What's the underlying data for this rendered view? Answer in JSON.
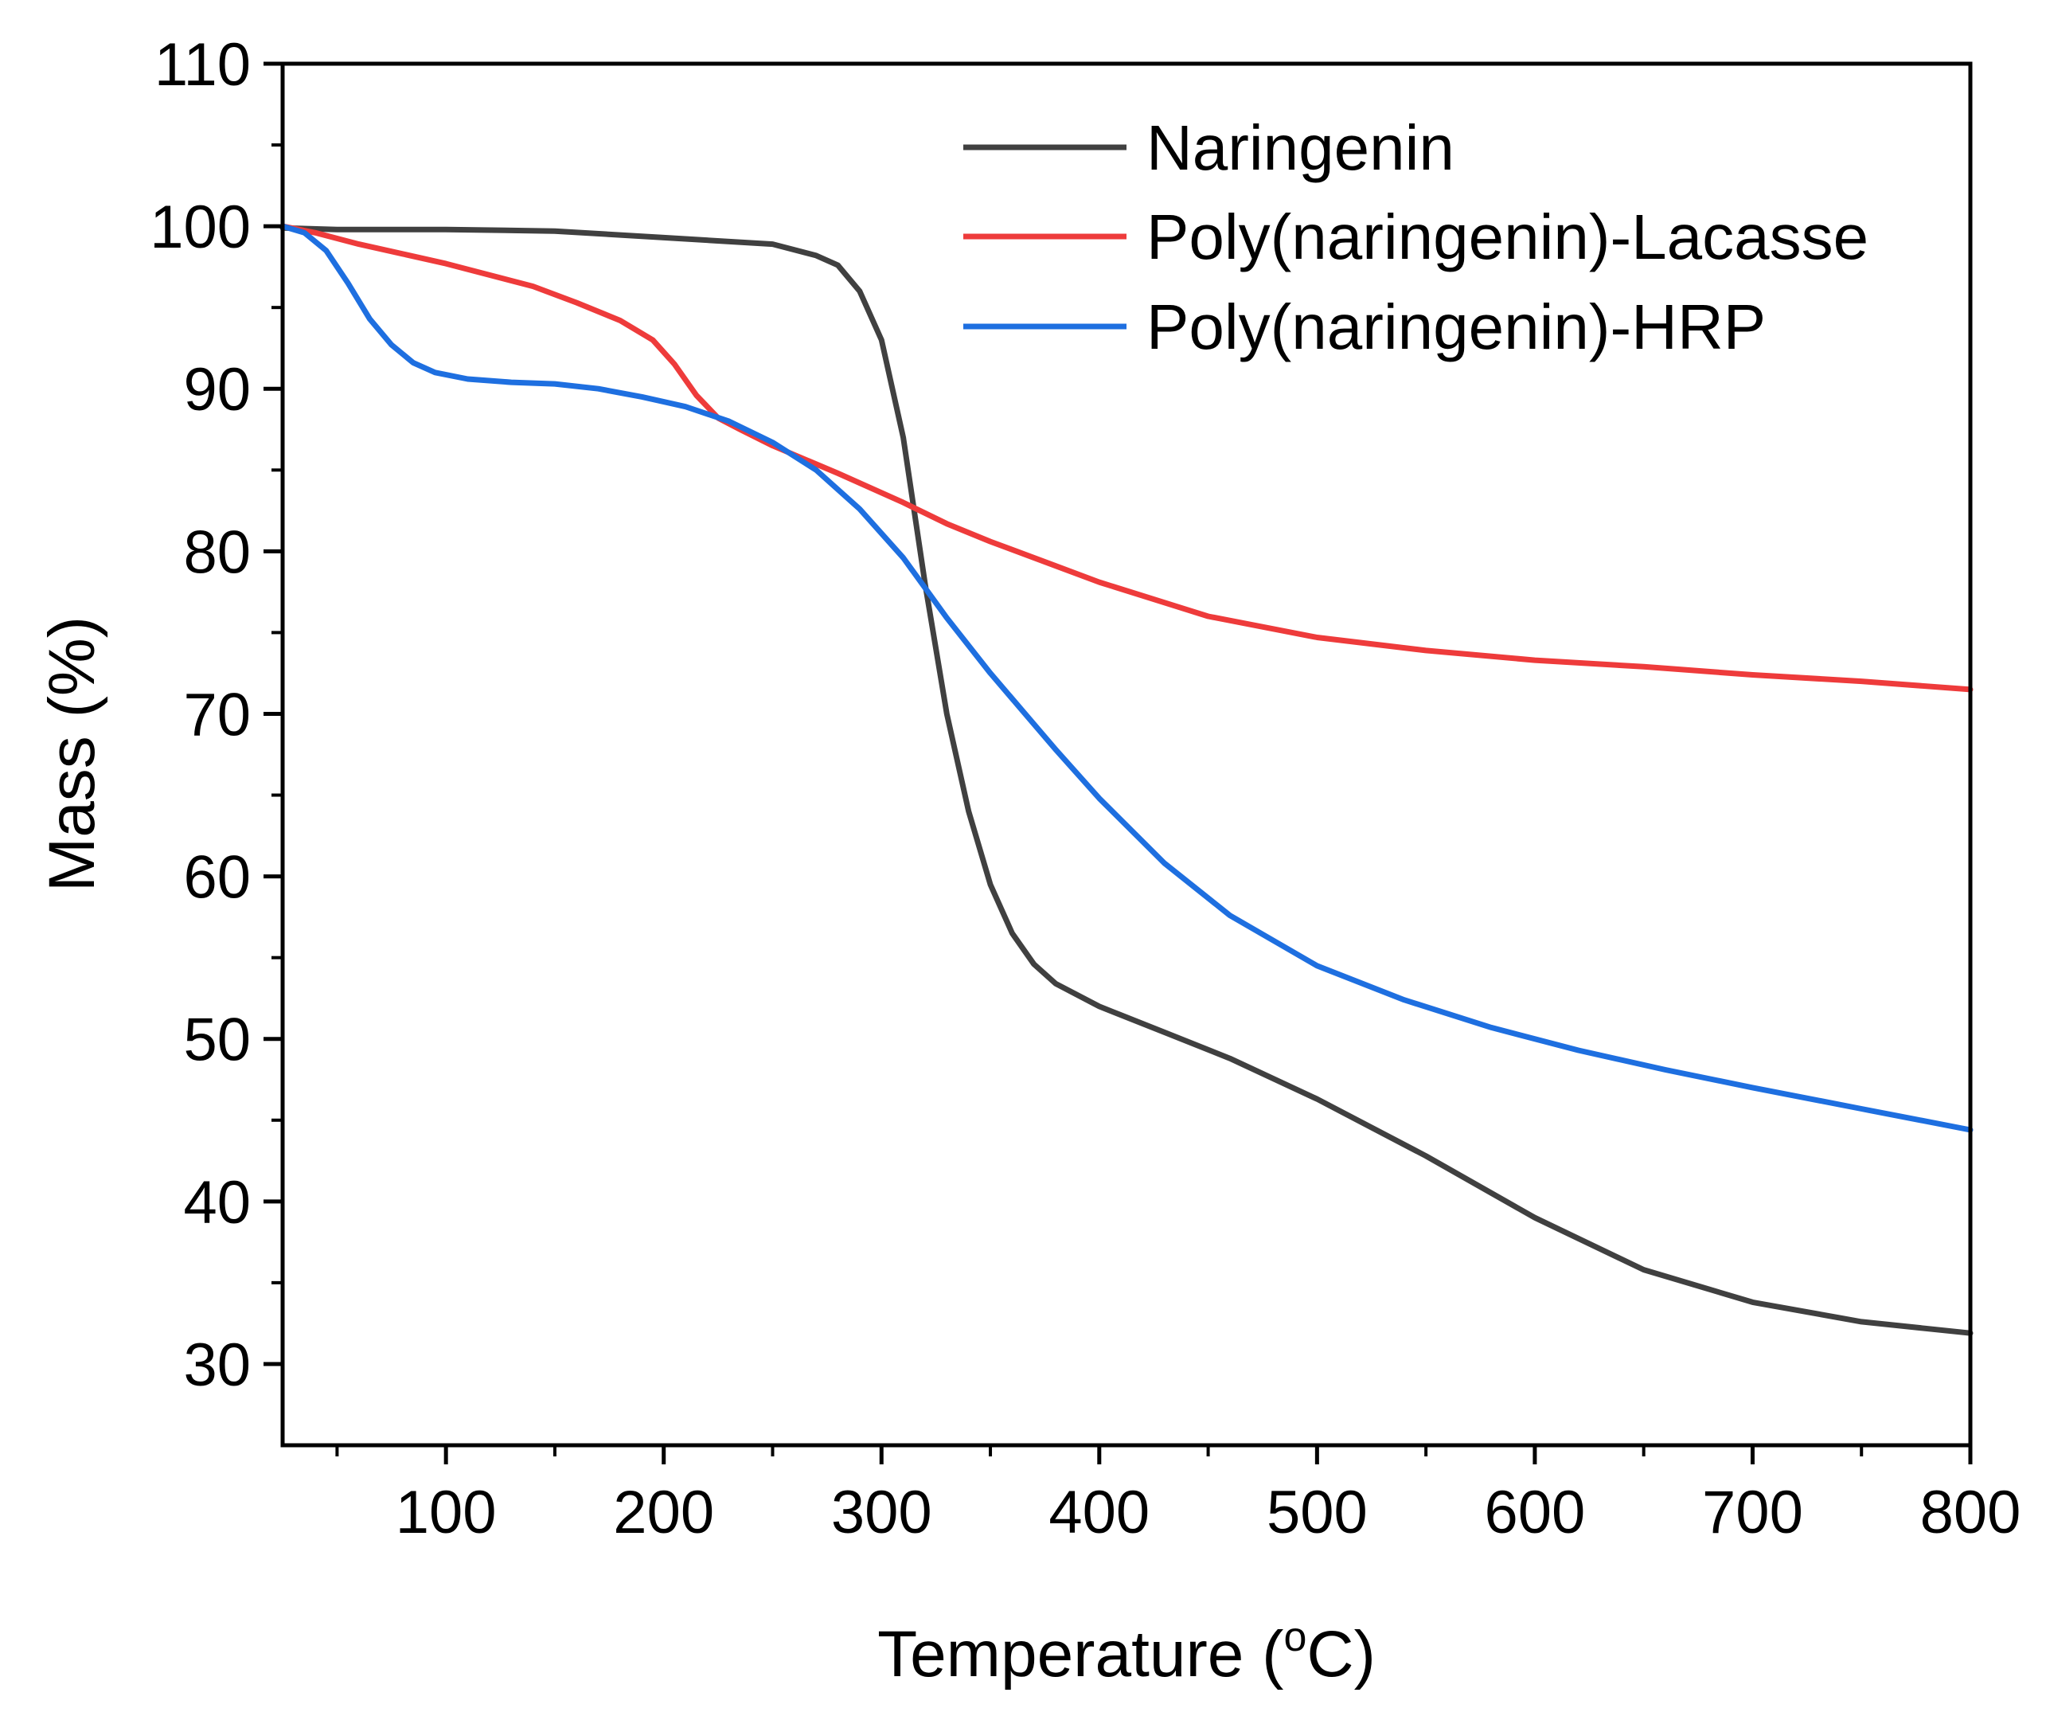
{
  "chart_data": {
    "type": "line",
    "title": "",
    "xlabel": "Temperature (",
    "xlabel_sup": "o",
    "xlabel_end": "C)",
    "ylabel": "Mass (%)",
    "xlim": [
      25,
      800
    ],
    "ylim": [
      25,
      110
    ],
    "x_ticks": [
      100,
      200,
      300,
      400,
      500,
      600,
      700,
      800
    ],
    "y_ticks": [
      30,
      40,
      50,
      60,
      70,
      80,
      90,
      100,
      110
    ],
    "x_tick_labels": [
      "100",
      "200",
      "300",
      "400",
      "500",
      "600",
      "700",
      "800"
    ],
    "y_tick_labels": [
      "30",
      "40",
      "50",
      "60",
      "70",
      "80",
      "90",
      "100",
      "110"
    ],
    "legend_position": "top-right",
    "series": [
      {
        "name": "Naringenin",
        "color": "#404040",
        "points": [
          [
            25,
            99.9
          ],
          [
            50,
            99.8
          ],
          [
            100,
            99.8
          ],
          [
            150,
            99.7
          ],
          [
            200,
            99.3
          ],
          [
            250,
            98.9
          ],
          [
            270,
            98.2
          ],
          [
            280,
            97.6
          ],
          [
            290,
            96.0
          ],
          [
            300,
            93.0
          ],
          [
            310,
            87.0
          ],
          [
            320,
            78.0
          ],
          [
            330,
            70.0
          ],
          [
            340,
            64.0
          ],
          [
            350,
            59.5
          ],
          [
            360,
            56.5
          ],
          [
            370,
            54.6
          ],
          [
            380,
            53.4
          ],
          [
            400,
            52.0
          ],
          [
            430,
            50.4
          ],
          [
            460,
            48.8
          ],
          [
            500,
            46.3
          ],
          [
            550,
            42.8
          ],
          [
            600,
            39.0
          ],
          [
            650,
            35.8
          ],
          [
            700,
            33.8
          ],
          [
            750,
            32.6
          ],
          [
            800,
            31.9
          ]
        ]
      },
      {
        "name": "Poly(naringenin)-Lacasse",
        "color": "#EE3B3B",
        "points": [
          [
            25,
            100.0
          ],
          [
            40,
            99.6
          ],
          [
            60,
            98.9
          ],
          [
            80,
            98.3
          ],
          [
            100,
            97.7
          ],
          [
            120,
            97.0
          ],
          [
            140,
            96.3
          ],
          [
            160,
            95.3
          ],
          [
            180,
            94.2
          ],
          [
            195,
            93.0
          ],
          [
            205,
            91.5
          ],
          [
            215,
            89.6
          ],
          [
            225,
            88.2
          ],
          [
            235,
            87.5
          ],
          [
            250,
            86.5
          ],
          [
            280,
            84.8
          ],
          [
            310,
            83.0
          ],
          [
            330,
            81.7
          ],
          [
            350,
            80.6
          ],
          [
            380,
            79.1
          ],
          [
            400,
            78.1
          ],
          [
            450,
            76.0
          ],
          [
            500,
            74.7
          ],
          [
            550,
            73.9
          ],
          [
            600,
            73.3
          ],
          [
            650,
            72.9
          ],
          [
            700,
            72.4
          ],
          [
            750,
            72.0
          ],
          [
            800,
            71.5
          ]
        ]
      },
      {
        "name": "Poly(naringenin)-HRP",
        "color": "#1E6FE0",
        "points": [
          [
            25,
            100.0
          ],
          [
            35,
            99.6
          ],
          [
            45,
            98.5
          ],
          [
            55,
            96.5
          ],
          [
            65,
            94.3
          ],
          [
            75,
            92.7
          ],
          [
            85,
            91.6
          ],
          [
            95,
            91.0
          ],
          [
            110,
            90.6
          ],
          [
            130,
            90.4
          ],
          [
            150,
            90.3
          ],
          [
            170,
            90.0
          ],
          [
            190,
            89.5
          ],
          [
            210,
            88.9
          ],
          [
            230,
            88.0
          ],
          [
            250,
            86.7
          ],
          [
            270,
            85.0
          ],
          [
            290,
            82.6
          ],
          [
            310,
            79.6
          ],
          [
            330,
            75.9
          ],
          [
            350,
            72.5
          ],
          [
            380,
            67.8
          ],
          [
            400,
            64.8
          ],
          [
            430,
            60.8
          ],
          [
            460,
            57.6
          ],
          [
            500,
            54.5
          ],
          [
            540,
            52.4
          ],
          [
            580,
            50.7
          ],
          [
            620,
            49.3
          ],
          [
            660,
            48.1
          ],
          [
            700,
            47.0
          ],
          [
            750,
            45.7
          ],
          [
            800,
            44.4
          ]
        ]
      }
    ]
  }
}
